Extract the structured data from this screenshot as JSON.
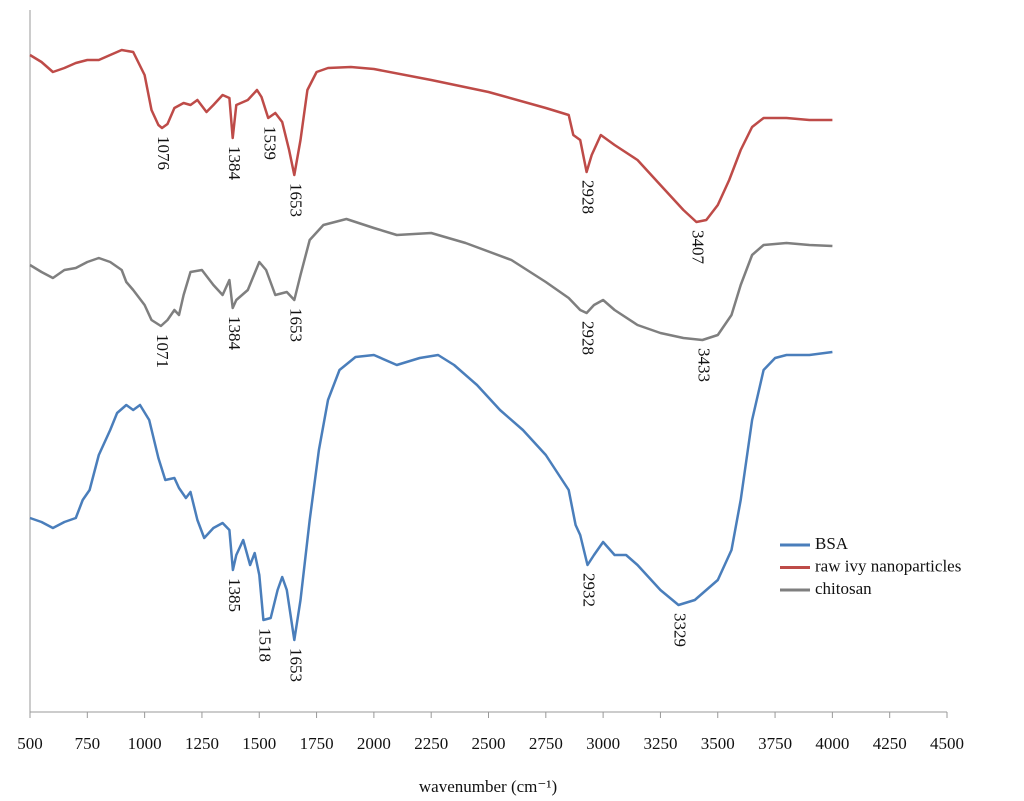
{
  "chart_data": {
    "type": "line",
    "x_label": "wavenumber (cm⁻¹)",
    "xlim": [
      500,
      4500
    ],
    "xticks": [
      500,
      750,
      1000,
      1250,
      1500,
      1750,
      2000,
      2250,
      2500,
      2750,
      3000,
      3250,
      3500,
      3750,
      4000,
      4250,
      4500
    ],
    "ylim": [
      0,
      702
    ],
    "legend": "right",
    "series": [
      {
        "name": "BSA",
        "color": "#4a7ebb",
        "x": [
          500,
          550,
          600,
          650,
          700,
          730,
          760,
          800,
          850,
          880,
          920,
          950,
          980,
          1020,
          1060,
          1090,
          1130,
          1150,
          1180,
          1200,
          1230,
          1260,
          1300,
          1340,
          1370,
          1385,
          1400,
          1430,
          1460,
          1480,
          1500,
          1518,
          1550,
          1580,
          1600,
          1620,
          1653,
          1680,
          1720,
          1760,
          1800,
          1850,
          1920,
          2000,
          2100,
          2200,
          2280,
          2350,
          2450,
          2550,
          2650,
          2750,
          2850,
          2880,
          2900,
          2932,
          2960,
          3000,
          3050,
          3100,
          3150,
          3250,
          3329,
          3400,
          3500,
          3560,
          3600,
          3650,
          3700,
          3750,
          3800,
          3900,
          4000
        ],
        "values": [
          194,
          190,
          184,
          190,
          194,
          212,
          222,
          257,
          282,
          299,
          307,
          302,
          307,
          292,
          254,
          232,
          234,
          224,
          214,
          220,
          192,
          174,
          184,
          189,
          182,
          142,
          157,
          172,
          147,
          159,
          137,
          92,
          94,
          122,
          135,
          122,
          72,
          112,
          192,
          262,
          312,
          342,
          355,
          357,
          347,
          354,
          357,
          347,
          327,
          302,
          282,
          257,
          222,
          187,
          177,
          147,
          157,
          170,
          157,
          157,
          147,
          122,
          107,
          112,
          132,
          162,
          212,
          292,
          342,
          354,
          357,
          357,
          360
        ],
        "peaks": [
          1385,
          1518,
          1653,
          2932,
          3329
        ]
      },
      {
        "name": "raw ivy nanoparticles",
        "color": "#be4b48",
        "x": [
          500,
          550,
          600,
          650,
          700,
          750,
          800,
          850,
          900,
          950,
          1000,
          1030,
          1060,
          1076,
          1100,
          1130,
          1170,
          1200,
          1230,
          1270,
          1300,
          1340,
          1370,
          1384,
          1400,
          1450,
          1490,
          1510,
          1539,
          1570,
          1600,
          1630,
          1653,
          1680,
          1710,
          1750,
          1800,
          1900,
          2000,
          2250,
          2500,
          2750,
          2850,
          2870,
          2900,
          2928,
          2950,
          2990,
          3050,
          3150,
          3250,
          3350,
          3407,
          3450,
          3500,
          3550,
          3600,
          3650,
          3700,
          3800,
          3900,
          4000
        ],
        "values": [
          657,
          650,
          640,
          644,
          649,
          652,
          652,
          657,
          662,
          660,
          637,
          602,
          587,
          584,
          588,
          604,
          609,
          607,
          612,
          600,
          607,
          617,
          614,
          574,
          607,
          612,
          622,
          615,
          594,
          599,
          590,
          562,
          537,
          572,
          622,
          640,
          644,
          645,
          643,
          632,
          620,
          604,
          597,
          577,
          572,
          540,
          557,
          577,
          567,
          552,
          527,
          502,
          490,
          492,
          507,
          532,
          562,
          585,
          594,
          594,
          592,
          592
        ],
        "peaks": [
          1076,
          1384,
          1539,
          1653,
          2928,
          3407
        ]
      },
      {
        "name": "chitosan",
        "color": "#7f7f7f",
        "x": [
          500,
          550,
          600,
          650,
          700,
          750,
          800,
          850,
          900,
          920,
          950,
          1000,
          1030,
          1071,
          1100,
          1130,
          1150,
          1170,
          1200,
          1250,
          1300,
          1340,
          1370,
          1384,
          1400,
          1450,
          1500,
          1530,
          1570,
          1620,
          1653,
          1680,
          1720,
          1780,
          1880,
          2000,
          2100,
          2250,
          2400,
          2600,
          2750,
          2850,
          2900,
          2928,
          2960,
          3000,
          3050,
          3150,
          3250,
          3350,
          3433,
          3500,
          3560,
          3600,
          3650,
          3700,
          3800,
          3900,
          4000
        ],
        "values": [
          447,
          440,
          434,
          442,
          444,
          450,
          454,
          450,
          442,
          430,
          422,
          407,
          392,
          386,
          392,
          402,
          397,
          417,
          440,
          442,
          427,
          417,
          432,
          404,
          412,
          422,
          450,
          442,
          417,
          420,
          412,
          437,
          472,
          487,
          493,
          484,
          477,
          479,
          469,
          452,
          430,
          414,
          402,
          399,
          407,
          412,
          402,
          387,
          379,
          374,
          372,
          377,
          397,
          427,
          457,
          467,
          469,
          467,
          466
        ],
        "peaks": [
          1071,
          1384,
          1653,
          2928,
          3433
        ]
      }
    ]
  }
}
